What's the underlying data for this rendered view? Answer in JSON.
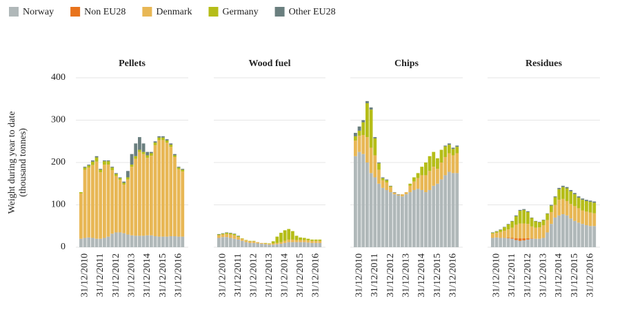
{
  "chart_data": [
    {
      "type": "bar",
      "stacked": true,
      "title": "Pellets",
      "y_label": [
        "Weight during year to date",
        "(thousand tonnes)"
      ],
      "categories": [
        null,
        "31/12/2010",
        null,
        null,
        null,
        "31/12/2011",
        null,
        null,
        null,
        "31/12/2012",
        null,
        null,
        null,
        "31/12/2013",
        null,
        null,
        null,
        "31/12/2014",
        null,
        null,
        null,
        "31/12/2015",
        null,
        null,
        null,
        "31/12/2016",
        null
      ],
      "ylim": [
        0,
        400
      ],
      "yticks": [
        0,
        100,
        200,
        300,
        400
      ],
      "grid": true,
      "series": [
        {
          "name": "Norway",
          "color": "#b0b8b9",
          "values": [
            20,
            22,
            23,
            22,
            20,
            20,
            22,
            25,
            32,
            35,
            35,
            33,
            30,
            28,
            27,
            27,
            27,
            28,
            28,
            26,
            25,
            25,
            25,
            26,
            26,
            25,
            25
          ]
        },
        {
          "name": "Non EU28",
          "color": "#e8731c",
          "values": [
            0,
            0,
            0,
            0,
            0,
            0,
            0,
            0,
            0,
            0,
            0,
            0,
            0,
            0,
            0,
            0,
            0,
            0,
            0,
            0,
            0,
            0,
            0,
            0,
            0,
            0,
            0
          ]
        },
        {
          "name": "Denmark",
          "color": "#e8b755",
          "values": [
            107,
            161,
            165,
            172,
            182,
            157,
            173,
            170,
            150,
            133,
            124,
            115,
            130,
            162,
            182,
            198,
            193,
            183,
            188,
            215,
            228,
            228,
            222,
            211,
            187,
            159,
            154
          ]
        },
        {
          "name": "Germany",
          "color": "#b5bd18",
          "values": [
            3,
            5,
            5,
            8,
            10,
            6,
            8,
            8,
            6,
            5,
            4,
            4,
            5,
            5,
            6,
            5,
            5,
            6,
            6,
            6,
            6,
            6,
            5,
            5,
            4,
            4,
            4
          ]
        },
        {
          "name": "Other EU28",
          "color": "#6a7f7f",
          "values": [
            0,
            2,
            2,
            3,
            3,
            2,
            2,
            2,
            2,
            2,
            2,
            3,
            15,
            25,
            30,
            30,
            20,
            8,
            3,
            3,
            3,
            3,
            3,
            3,
            3,
            2,
            2
          ]
        }
      ]
    },
    {
      "type": "bar",
      "stacked": true,
      "title": "Wood fuel",
      "categories": [
        null,
        "31/12/2010",
        null,
        null,
        null,
        "31/12/2011",
        null,
        null,
        null,
        "31/12/2012",
        null,
        null,
        null,
        "31/12/2013",
        null,
        null,
        null,
        "31/12/2014",
        null,
        null,
        null,
        "31/12/2015",
        null,
        null,
        null,
        "31/12/2016",
        null
      ],
      "ylim": [
        0,
        400
      ],
      "yticks": [
        0,
        100,
        200,
        300,
        400
      ],
      "grid": true,
      "series": [
        {
          "name": "Norway",
          "color": "#b0b8b9",
          "values": [
            22,
            24,
            24,
            22,
            20,
            18,
            15,
            12,
            10,
            10,
            9,
            8,
            7,
            6,
            6,
            7,
            8,
            10,
            12,
            12,
            12,
            12,
            12,
            11,
            10,
            10,
            10
          ]
        },
        {
          "name": "Non EU28",
          "color": "#e8731c",
          "values": [
            0,
            0,
            0,
            0,
            0,
            0,
            0,
            0,
            0,
            0,
            0,
            0,
            0,
            0,
            0,
            0,
            0,
            0,
            0,
            0,
            0,
            0,
            0,
            0,
            0,
            0,
            0
          ]
        },
        {
          "name": "Denmark",
          "color": "#e8b755",
          "values": [
            6,
            6,
            7,
            8,
            8,
            6,
            5,
            4,
            4,
            4,
            3,
            2,
            2,
            2,
            3,
            3,
            4,
            5,
            6,
            6,
            5,
            5,
            5,
            5,
            5,
            5,
            5
          ]
        },
        {
          "name": "Germany",
          "color": "#b5bd18",
          "values": [
            2,
            2,
            3,
            3,
            3,
            2,
            1,
            1,
            1,
            1,
            0,
            0,
            1,
            1,
            5,
            15,
            22,
            25,
            25,
            20,
            10,
            6,
            5,
            4,
            3,
            3,
            3
          ]
        },
        {
          "name": "Other EU28",
          "color": "#6a7f7f",
          "values": [
            1,
            1,
            1,
            1,
            1,
            1,
            0,
            0,
            0,
            0,
            0,
            0,
            0,
            0,
            0,
            0,
            0,
            0,
            0,
            0,
            0,
            0,
            0,
            0,
            0,
            0,
            0
          ]
        }
      ]
    },
    {
      "type": "bar",
      "stacked": true,
      "title": "Chips",
      "categories": [
        null,
        "31/12/2010",
        null,
        null,
        null,
        "31/12/2011",
        null,
        null,
        null,
        "31/12/2012",
        null,
        null,
        null,
        "31/12/2013",
        null,
        null,
        null,
        "31/12/2014",
        null,
        null,
        null,
        "31/12/2015",
        null,
        null,
        null,
        "31/12/2016",
        null
      ],
      "ylim": [
        0,
        400
      ],
      "yticks": [
        0,
        100,
        200,
        300,
        400
      ],
      "grid": true,
      "series": [
        {
          "name": "Norway",
          "color": "#b0b8b9",
          "values": [
            215,
            225,
            220,
            200,
            175,
            165,
            150,
            140,
            135,
            130,
            125,
            122,
            120,
            125,
            130,
            135,
            138,
            135,
            130,
            135,
            145,
            150,
            160,
            170,
            178,
            175,
            175
          ]
        },
        {
          "name": "Non EU28",
          "color": "#e8731c",
          "values": [
            0,
            0,
            0,
            0,
            0,
            0,
            0,
            0,
            0,
            0,
            0,
            0,
            0,
            0,
            0,
            0,
            0,
            0,
            0,
            0,
            0,
            0,
            0,
            0,
            0,
            0,
            0
          ]
        },
        {
          "name": "Denmark",
          "color": "#e8b755",
          "values": [
            37,
            38,
            45,
            60,
            60,
            52,
            33,
            18,
            18,
            12,
            4,
            2,
            5,
            5,
            15,
            20,
            25,
            35,
            40,
            45,
            45,
            35,
            40,
            43,
            44,
            42,
            47
          ]
        },
        {
          "name": "Germany",
          "color": "#b5bd18",
          "values": [
            10,
            12,
            30,
            80,
            90,
            40,
            15,
            5,
            5,
            2,
            0,
            0,
            0,
            0,
            5,
            10,
            12,
            20,
            30,
            35,
            35,
            25,
            30,
            25,
            20,
            15,
            15
          ]
        },
        {
          "name": "Other EU28",
          "color": "#6a7f7f",
          "values": [
            8,
            10,
            5,
            5,
            5,
            3,
            2,
            2,
            2,
            1,
            1,
            1,
            0,
            0,
            0,
            0,
            0,
            0,
            0,
            0,
            0,
            0,
            0,
            2,
            3,
            3,
            3
          ]
        }
      ]
    },
    {
      "type": "bar",
      "stacked": true,
      "title": "Residues",
      "categories": [
        null,
        "31/12/2010",
        null,
        null,
        null,
        "31/12/2011",
        null,
        null,
        null,
        "31/12/2012",
        null,
        null,
        null,
        "31/12/2013",
        null,
        null,
        null,
        "31/12/2014",
        null,
        null,
        null,
        "31/12/2015",
        null,
        null,
        null,
        "31/12/2016",
        null
      ],
      "ylim": [
        0,
        400
      ],
      "yticks": [
        0,
        100,
        200,
        300,
        400
      ],
      "grid": true,
      "series": [
        {
          "name": "Norway",
          "color": "#b0b8b9",
          "values": [
            22,
            23,
            22,
            22,
            21,
            20,
            17,
            15,
            16,
            18,
            20,
            20,
            20,
            22,
            35,
            55,
            70,
            75,
            78,
            75,
            68,
            62,
            58,
            55,
            52,
            50,
            50
          ]
        },
        {
          "name": "Non EU28",
          "color": "#e8731c",
          "values": [
            0,
            0,
            0,
            0,
            1,
            2,
            4,
            6,
            5,
            3,
            1,
            0,
            0,
            0,
            0,
            0,
            0,
            0,
            0,
            0,
            0,
            0,
            0,
            0,
            0,
            0,
            0
          ]
        },
        {
          "name": "Denmark",
          "color": "#e8b755",
          "values": [
            10,
            11,
            14,
            17,
            20,
            24,
            32,
            35,
            35,
            34,
            28,
            26,
            27,
            30,
            29,
            28,
            30,
            37,
            36,
            34,
            34,
            35,
            34,
            32,
            32,
            32,
            30
          ]
        },
        {
          "name": "Germany",
          "color": "#b5bd18",
          "values": [
            2,
            3,
            5,
            8,
            12,
            15,
            20,
            30,
            32,
            28,
            20,
            15,
            12,
            12,
            15,
            15,
            18,
            25,
            28,
            30,
            30,
            28,
            25,
            25,
            25,
            25,
            25
          ]
        },
        {
          "name": "Other EU28",
          "color": "#6a7f7f",
          "values": [
            1,
            1,
            1,
            1,
            1,
            1,
            2,
            2,
            2,
            2,
            1,
            1,
            1,
            1,
            1,
            2,
            2,
            3,
            3,
            3,
            3,
            3,
            3,
            3,
            3,
            3,
            3
          ]
        }
      ]
    }
  ]
}
